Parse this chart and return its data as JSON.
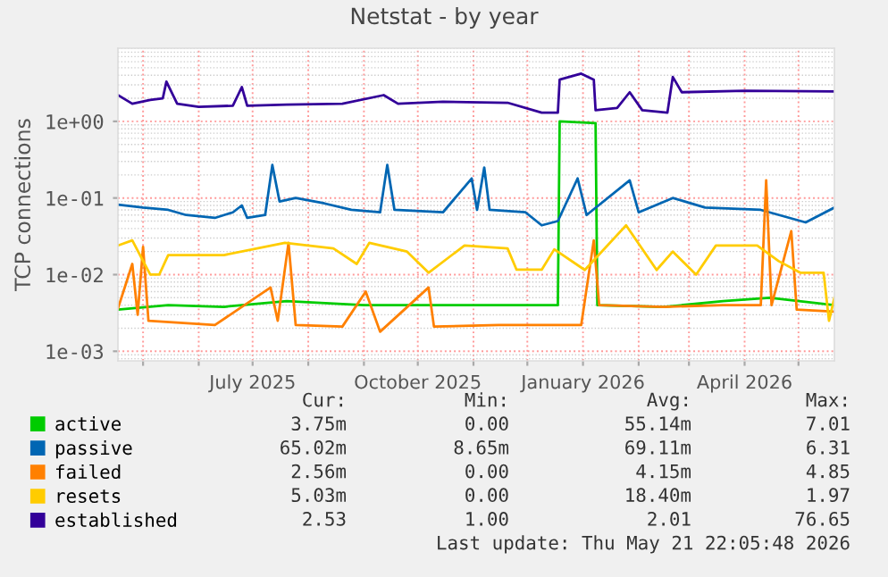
{
  "chart_data": {
    "type": "line",
    "title": "Netstat - by year",
    "ylabel": "TCP connections",
    "log": true,
    "grid": true,
    "legend": "bottom",
    "line_style": "solid",
    "marker": "none",
    "xlim": [
      "2025-04-17",
      "2026-05-21"
    ],
    "xticks": [
      {
        "value": "2025-05-01",
        "label": null
      },
      {
        "value": "2025-06-01",
        "label": null
      },
      {
        "value": "2025-07-01",
        "label": "July 2025"
      },
      {
        "value": "2025-08-01",
        "label": null
      },
      {
        "value": "2025-09-01",
        "label": null
      },
      {
        "value": "2025-10-01",
        "label": "October 2025"
      },
      {
        "value": "2025-11-01",
        "label": null
      },
      {
        "value": "2025-12-01",
        "label": null
      },
      {
        "value": "2026-01-01",
        "label": "January 2026"
      },
      {
        "value": "2026-02-01",
        "label": null
      },
      {
        "value": "2026-03-01",
        "label": null
      },
      {
        "value": "2026-04-01",
        "label": "April 2026"
      },
      {
        "value": "2026-05-01",
        "label": null
      }
    ],
    "ylim": [
      0.00075,
      9
    ],
    "yticks": [
      {
        "value": 0.001,
        "label": "1e-03"
      },
      {
        "value": 0.01,
        "label": "1e-02"
      },
      {
        "value": 0.1,
        "label": "1e-01"
      },
      {
        "value": 1,
        "label": "1e+00"
      }
    ],
    "series": [
      {
        "name": "active",
        "color": "#00cc00",
        "x": [
          "2025-04-17",
          "2025-05-15",
          "2025-06-15",
          "2025-07-20",
          "2025-09-01",
          "2025-10-15",
          "2025-12-18",
          "2025-12-19",
          "2026-01-08",
          "2026-01-09",
          "2026-02-15",
          "2026-03-20",
          "2026-04-15",
          "2026-05-21"
        ],
        "values": [
          0.0035,
          0.004,
          0.0038,
          0.0045,
          0.004,
          0.004,
          0.004,
          1.0,
          0.95,
          0.004,
          0.0038,
          0.0045,
          0.005,
          0.004
        ]
      },
      {
        "name": "passive",
        "color": "#0066b3",
        "x": [
          "2025-04-17",
          "2025-05-01",
          "2025-05-15",
          "2025-05-25",
          "2025-06-10",
          "2025-06-20",
          "2025-06-25",
          "2025-06-28",
          "2025-07-08",
          "2025-07-12",
          "2025-07-16",
          "2025-07-25",
          "2025-08-10",
          "2025-08-25",
          "2025-09-10",
          "2025-09-14",
          "2025-09-18",
          "2025-10-15",
          "2025-10-31",
          "2025-11-03",
          "2025-11-07",
          "2025-11-10",
          "2025-11-30",
          "2025-12-09",
          "2025-12-18",
          "2025-12-29",
          "2026-01-03",
          "2026-01-27",
          "2026-02-01",
          "2026-02-20",
          "2026-03-10",
          "2026-04-10",
          "2026-05-05",
          "2026-05-21"
        ],
        "values": [
          0.082,
          0.075,
          0.07,
          0.06,
          0.055,
          0.065,
          0.08,
          0.055,
          0.06,
          0.27,
          0.09,
          0.1,
          0.085,
          0.07,
          0.065,
          0.27,
          0.07,
          0.065,
          0.18,
          0.07,
          0.25,
          0.07,
          0.065,
          0.044,
          0.05,
          0.18,
          0.06,
          0.17,
          0.065,
          0.1,
          0.075,
          0.07,
          0.048,
          0.075
        ]
      },
      {
        "name": "failed",
        "color": "#ff8000",
        "x": [
          "2025-04-17",
          "2025-04-25",
          "2025-04-28",
          "2025-05-01",
          "2025-05-04",
          "2025-06-10",
          "2025-07-11",
          "2025-07-15",
          "2025-07-21",
          "2025-07-25",
          "2025-08-20",
          "2025-09-02",
          "2025-09-10",
          "2025-10-07",
          "2025-10-10",
          "2025-11-15",
          "2025-12-31",
          "2026-01-07",
          "2026-01-10",
          "2026-02-15",
          "2026-03-20",
          "2026-04-10",
          "2026-04-13",
          "2026-04-16",
          "2026-04-27",
          "2026-04-30",
          "2026-05-21"
        ],
        "values": [
          0.0036,
          0.0138,
          0.003,
          0.023,
          0.0025,
          0.0022,
          0.0068,
          0.0025,
          0.026,
          0.0022,
          0.0021,
          0.006,
          0.0018,
          0.0068,
          0.0021,
          0.0022,
          0.0022,
          0.028,
          0.004,
          0.0038,
          0.004,
          0.004,
          0.17,
          0.004,
          0.037,
          0.0035,
          0.0033
        ]
      },
      {
        "name": "resets",
        "color": "#ffcc00",
        "x": [
          "2025-04-17",
          "2025-04-25",
          "2025-05-05",
          "2025-05-10",
          "2025-05-15",
          "2025-06-15",
          "2025-07-19",
          "2025-08-15",
          "2025-08-28",
          "2025-09-04",
          "2025-09-25",
          "2025-10-07",
          "2025-10-27",
          "2025-11-20",
          "2025-11-25",
          "2025-12-09",
          "2025-12-16",
          "2026-01-02",
          "2026-01-25",
          "2026-02-11",
          "2026-02-20",
          "2026-03-05",
          "2026-03-16",
          "2026-04-08",
          "2026-04-20",
          "2026-05-02",
          "2026-05-15",
          "2026-05-18",
          "2026-05-21"
        ],
        "values": [
          0.024,
          0.028,
          0.01,
          0.01,
          0.018,
          0.018,
          0.026,
          0.022,
          0.0138,
          0.026,
          0.02,
          0.0106,
          0.024,
          0.022,
          0.0116,
          0.0116,
          0.0214,
          0.0115,
          0.044,
          0.0115,
          0.02,
          0.01,
          0.024,
          0.024,
          0.015,
          0.0106,
          0.0106,
          0.0025,
          0.005
        ]
      },
      {
        "name": "established",
        "color": "#330099",
        "x": [
          "2025-04-17",
          "2025-04-25",
          "2025-05-05",
          "2025-05-12",
          "2025-05-14",
          "2025-05-20",
          "2025-06-01",
          "2025-06-20",
          "2025-06-25",
          "2025-06-28",
          "2025-07-20",
          "2025-08-20",
          "2025-09-12",
          "2025-09-20",
          "2025-10-15",
          "2025-11-20",
          "2025-12-09",
          "2025-12-18",
          "2025-12-19",
          "2025-12-31",
          "2026-01-07",
          "2026-01-08",
          "2026-01-20",
          "2026-01-27",
          "2026-02-03",
          "2026-02-17",
          "2026-02-20",
          "2026-02-25",
          "2026-04-01",
          "2026-05-21"
        ],
        "values": [
          2.2,
          1.7,
          1.9,
          2.0,
          3.3,
          1.7,
          1.55,
          1.6,
          2.8,
          1.6,
          1.65,
          1.7,
          2.2,
          1.7,
          1.8,
          1.75,
          1.3,
          1.3,
          3.5,
          4.2,
          3.5,
          1.4,
          1.5,
          2.4,
          1.4,
          1.3,
          3.8,
          2.4,
          2.5,
          2.45
        ]
      }
    ],
    "annotations": [
      "Cur:",
      "Min:",
      "Avg:",
      "Max:",
      "3.75m",
      "0.00",
      "55.14m",
      "7.01",
      "65.02m",
      "8.65m",
      "69.11m",
      "6.31",
      "2.56m",
      "0.00",
      "4.15m",
      "4.85",
      "5.03m",
      "0.00",
      "18.40m",
      "1.97",
      "2.53",
      "1.00",
      "2.01",
      "76.65",
      "Last update: Thu May 21 22:05:48 2026"
    ]
  }
}
